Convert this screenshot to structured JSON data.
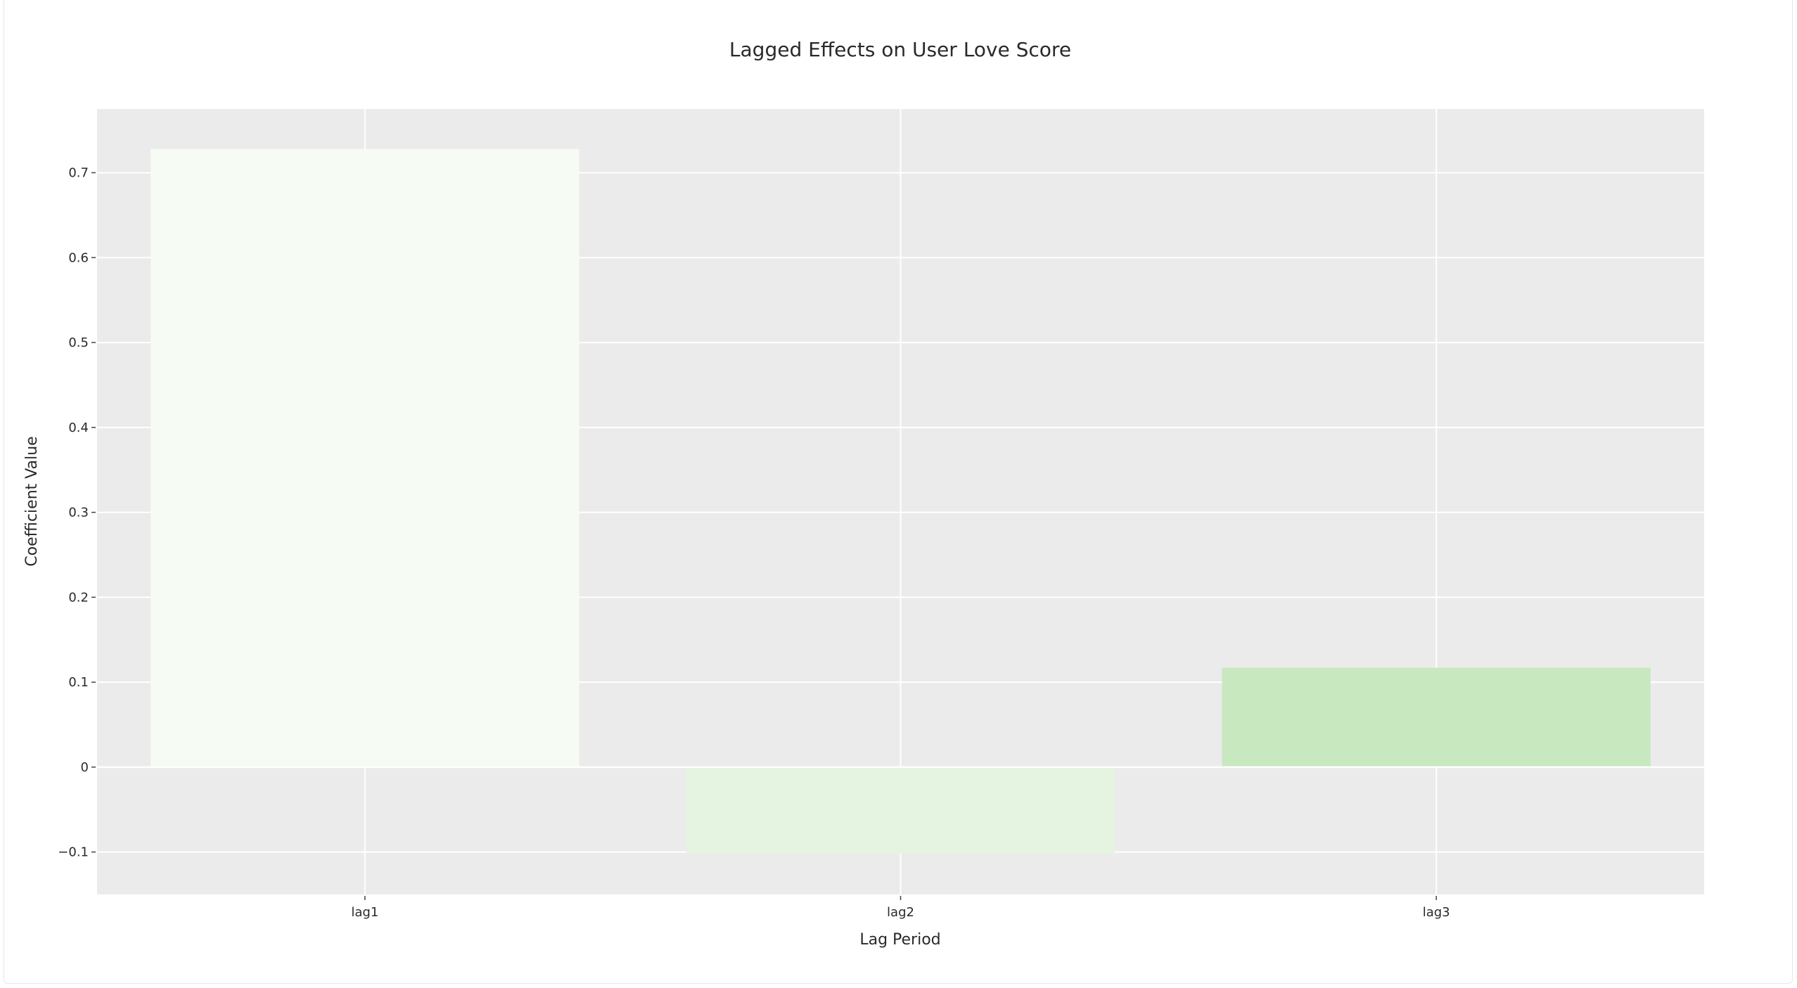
{
  "chart_data": {
    "type": "bar",
    "title": "Lagged Effects on User Love Score",
    "xlabel": "Lag Period",
    "ylabel": "Coefficient Value",
    "categories": [
      "lag1",
      "lag2",
      "lag3"
    ],
    "values": [
      0.728,
      -0.102,
      0.117
    ],
    "ylim": [
      -0.15,
      0.775
    ],
    "yticks": [
      -0.1,
      0,
      0.1,
      0.2,
      0.3,
      0.4,
      0.5,
      0.6,
      0.7
    ],
    "ytick_labels": [
      "−0.1",
      "0",
      "0.1",
      "0.2",
      "0.3",
      "0.4",
      "0.5",
      "0.6",
      "0.7"
    ],
    "grid": true,
    "legend": "none",
    "bar_colors": [
      "#f6fbf3",
      "#e5f4e0",
      "#c8e8c0"
    ],
    "plot_background": "#ebebeb",
    "grid_color": "#ffffff"
  }
}
